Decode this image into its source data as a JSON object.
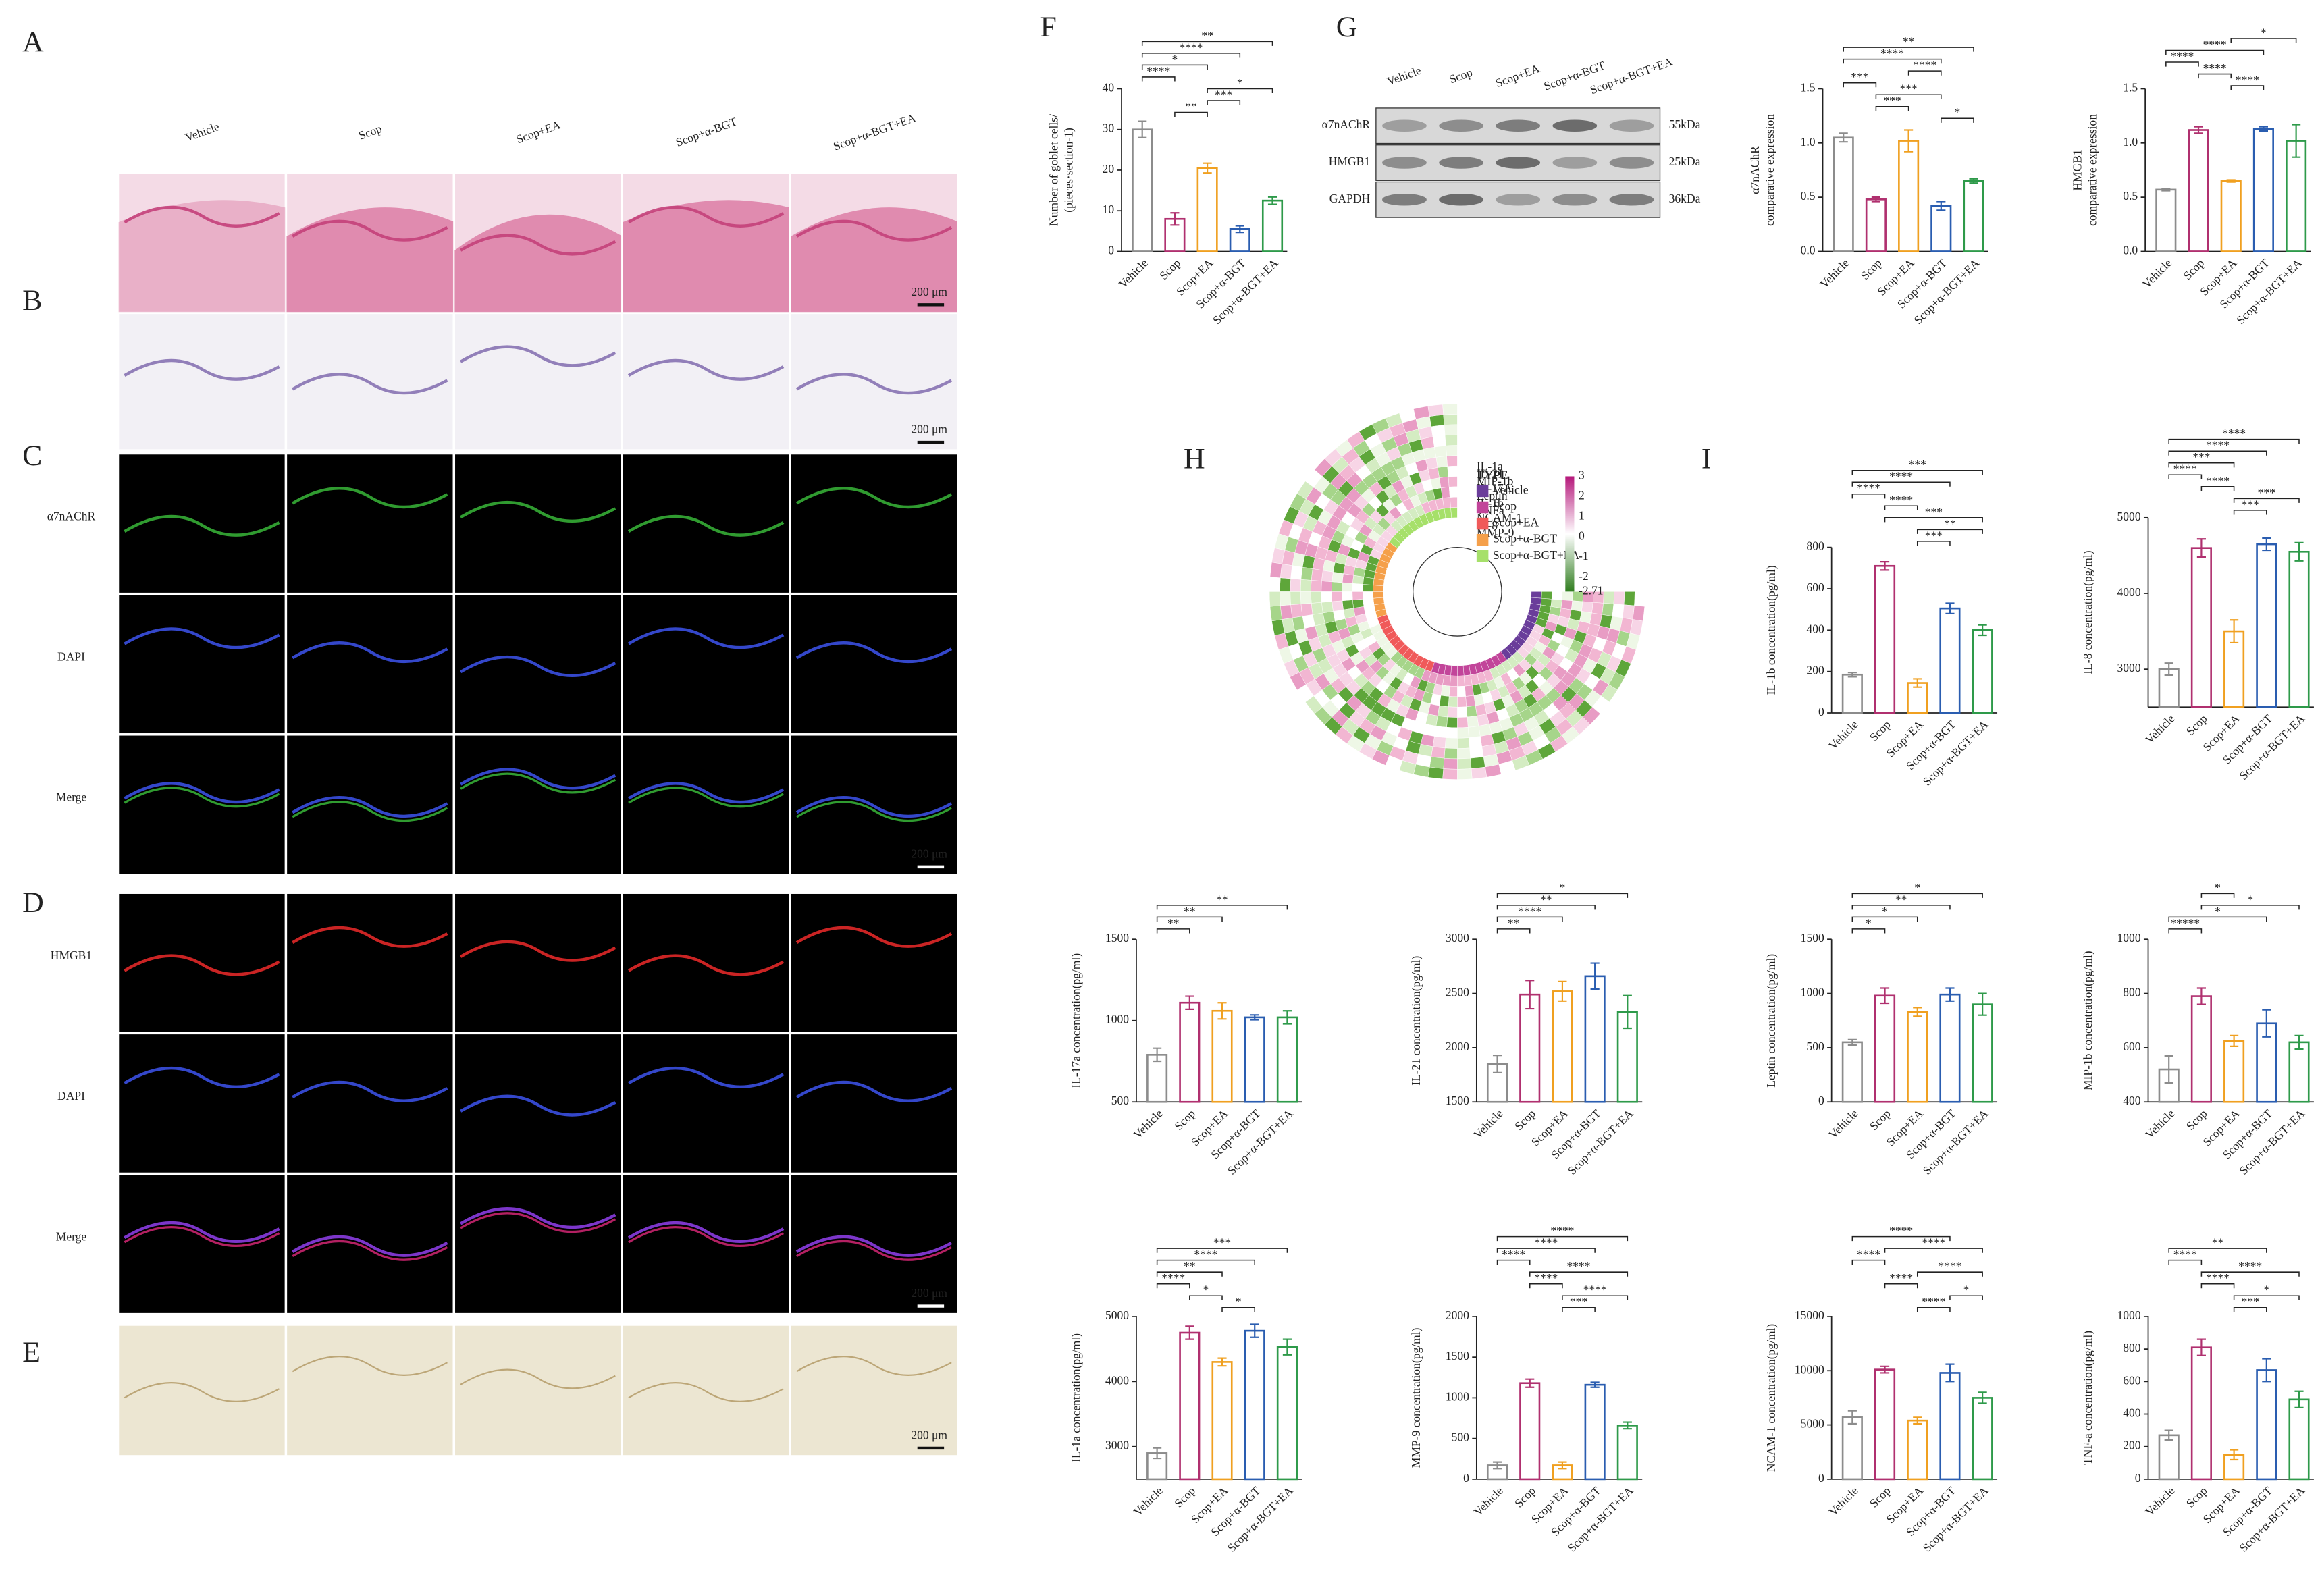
{
  "panel_labels": [
    "A",
    "B",
    "C",
    "D",
    "E",
    "F",
    "G",
    "H",
    "I"
  ],
  "micrographs": {
    "columns": [
      "Vehicle",
      "Scop",
      "Scop+EA",
      "Scop+α-BGT",
      "Scop+α-BGT+EA"
    ],
    "channels_C": [
      "α7nAChR",
      "DAPI",
      "Merge"
    ],
    "channels_D": [
      "HMGB1",
      "DAPI",
      "Merge"
    ],
    "scale_bar": "200 μm"
  },
  "blot": {
    "lanes": [
      "Vehicle",
      "Scop",
      "Scop+EA",
      "Scop+α-BGT",
      "Scop+α-BGT+EA"
    ],
    "rows": [
      {
        "name": "α7nAChR",
        "size": "55kDa"
      },
      {
        "name": "HMGB1",
        "size": "25kDa"
      },
      {
        "name": "GAPDH",
        "size": "36kDa"
      }
    ]
  },
  "heatmap": {
    "legend_title": "TYPE",
    "groups": [
      {
        "name": "Vehicle",
        "color": "#6a3d9a"
      },
      {
        "name": "Scop",
        "color": "#c2459a"
      },
      {
        "name": "Scop+EA",
        "color": "#f05a5a"
      },
      {
        "name": "Scop+α-BGT",
        "color": "#f5a04a"
      },
      {
        "name": "Scop+α-BGT+EA",
        "color": "#a6e06a"
      }
    ],
    "variables": [
      "IL-1a",
      "IL-21",
      "MIP-1b",
      "IL-17A",
      "Leptin",
      "IL-1b",
      "TNFa",
      "NCAM-1",
      "IL-8",
      "MMP-9"
    ],
    "colorbar_ticks": [
      3,
      2,
      1,
      0,
      -1,
      -2,
      -2.71
    ]
  },
  "chart_data": [
    {
      "type": "bar",
      "ylabel": [
        "Number of goblet cells/",
        "(pieces·section-1)"
      ],
      "categories": [
        "Vehicle",
        "Scop",
        "Scop+EA",
        "Scop+α-BGT",
        "Scop+α-BGT+EA"
      ],
      "colors": [
        "#8c8c8c",
        "#b0306f",
        "#f0a020",
        "#2a5db0",
        "#2e9a4a"
      ],
      "values": [
        30,
        8,
        20.5,
        5.5,
        12.5
      ],
      "errors": [
        2,
        1.5,
        1.2,
        0.8,
        0.9
      ],
      "ylim": [
        0,
        40
      ],
      "yticks": [
        0,
        10,
        20,
        30,
        40
      ],
      "significance": [
        {
          "pair": [
            0,
            4
          ],
          "label": "**"
        },
        {
          "pair": [
            0,
            3
          ],
          "label": "****"
        },
        {
          "pair": [
            0,
            2
          ],
          "label": "*"
        },
        {
          "pair": [
            0,
            1
          ],
          "label": "****"
        },
        {
          "pair": [
            2,
            4
          ],
          "label": "*"
        },
        {
          "pair": [
            2,
            3
          ],
          "label": "***"
        },
        {
          "pair": [
            1,
            2
          ],
          "label": "**"
        }
      ]
    },
    {
      "type": "bar",
      "ylabel": [
        "α7nAChR",
        "comparative expression"
      ],
      "categories": [
        "Vehicle",
        "Scop",
        "Scop+EA",
        "Scop+α-BGT",
        "Scop+α-BGT+EA"
      ],
      "colors": [
        "#8c8c8c",
        "#b0306f",
        "#f0a020",
        "#2a5db0",
        "#2e9a4a"
      ],
      "values": [
        1.05,
        0.48,
        1.02,
        0.42,
        0.65
      ],
      "errors": [
        0.04,
        0.02,
        0.1,
        0.04,
        0.02
      ],
      "ylim": [
        0,
        1.5
      ],
      "yticks": [
        {
          "value": 0,
          "label": "0.0"
        },
        {
          "value": 0.5,
          "label": "0.5"
        },
        {
          "value": 1,
          "label": "1.0"
        },
        {
          "value": 1.5,
          "label": "1.5"
        }
      ],
      "significance": [
        {
          "pair": [
            0,
            4
          ],
          "label": "**"
        },
        {
          "pair": [
            0,
            3
          ],
          "label": "****"
        },
        {
          "pair": [
            2,
            3
          ],
          "label": "****"
        },
        {
          "pair": [
            0,
            1
          ],
          "label": "***"
        },
        {
          "pair": [
            1,
            3
          ],
          "label": "***"
        },
        {
          "pair": [
            1,
            2
          ],
          "label": "***"
        },
        {
          "pair": [
            3,
            4
          ],
          "label": "*"
        }
      ]
    },
    {
      "type": "bar",
      "ylabel": [
        "HMGB1",
        "comparative expression"
      ],
      "categories": [
        "Vehicle",
        "Scop",
        "Scop+EA",
        "Scop+α-BGT",
        "Scop+α-BGT+EA"
      ],
      "colors": [
        "#8c8c8c",
        "#b0306f",
        "#f0a020",
        "#2a5db0",
        "#2e9a4a"
      ],
      "values": [
        0.57,
        1.12,
        0.65,
        1.13,
        1.02
      ],
      "errors": [
        0.01,
        0.03,
        0.01,
        0.02,
        0.15
      ],
      "ylim": [
        0,
        1.5
      ],
      "yticks": [
        {
          "value": 0,
          "label": "0.0"
        },
        {
          "value": 0.5,
          "label": "0.5"
        },
        {
          "value": 1,
          "label": "1.0"
        },
        {
          "value": 1.5,
          "label": "1.5"
        }
      ],
      "significance": [
        {
          "pair": [
            2,
            4
          ],
          "label": "*"
        },
        {
          "pair": [
            0,
            3
          ],
          "label": "****"
        },
        {
          "pair": [
            0,
            1
          ],
          "label": "****"
        },
        {
          "pair": [
            1,
            2
          ],
          "label": "****"
        },
        {
          "pair": [
            2,
            3
          ],
          "label": "****"
        }
      ]
    },
    {
      "type": "bar",
      "ylabel": [
        "IL-1b concentration(pg/ml)"
      ],
      "categories": [
        "Vehicle",
        "Scop",
        "Scop+EA",
        "Scop+α-BGT",
        "Scop+α-BGT+EA"
      ],
      "colors": [
        "#8c8c8c",
        "#b0306f",
        "#f0a020",
        "#2a5db0",
        "#2e9a4a"
      ],
      "values": [
        185,
        710,
        145,
        505,
        400
      ],
      "errors": [
        10,
        20,
        20,
        25,
        25
      ],
      "ylim": [
        0,
        800
      ],
      "yticks": [
        0,
        200,
        400,
        600,
        800
      ],
      "significance": [
        {
          "pair": [
            0,
            4
          ],
          "label": "***"
        },
        {
          "pair": [
            0,
            3
          ],
          "label": "****"
        },
        {
          "pair": [
            0,
            1
          ],
          "label": "****"
        },
        {
          "pair": [
            1,
            2
          ],
          "label": "****"
        },
        {
          "pair": [
            1,
            4
          ],
          "label": "***"
        },
        {
          "pair": [
            2,
            4
          ],
          "label": "**"
        },
        {
          "pair": [
            2,
            3
          ],
          "label": "***"
        }
      ]
    },
    {
      "type": "bar",
      "ylabel": [
        "IL-8 concentration(pg/ml)"
      ],
      "categories": [
        "Vehicle",
        "Scop",
        "Scop+EA",
        "Scop+α-BGT",
        "Scop+α-BGT+EA"
      ],
      "colors": [
        "#8c8c8c",
        "#b0306f",
        "#f0a020",
        "#2a5db0",
        "#2e9a4a"
      ],
      "values": [
        3000,
        4600,
        3500,
        4650,
        4550
      ],
      "errors": [
        80,
        120,
        150,
        80,
        120
      ],
      "ylim": [
        2500,
        5000
      ],
      "yticks": [
        3000,
        4000,
        5000
      ],
      "significance": [
        {
          "pair": [
            0,
            4
          ],
          "label": "****"
        },
        {
          "pair": [
            0,
            3
          ],
          "label": "****"
        },
        {
          "pair": [
            0,
            2
          ],
          "label": "***"
        },
        {
          "pair": [
            0,
            1
          ],
          "label": "****"
        },
        {
          "pair": [
            1,
            2
          ],
          "label": "****"
        },
        {
          "pair": [
            2,
            4
          ],
          "label": "***"
        },
        {
          "pair": [
            2,
            3
          ],
          "label": "***"
        }
      ]
    },
    {
      "type": "bar",
      "ylabel": [
        "IL-17a concentration(pg/ml)"
      ],
      "categories": [
        "Vehicle",
        "Scop",
        "Scop+EA",
        "Scop+α-BGT",
        "Scop+α-BGT+EA"
      ],
      "colors": [
        "#8c8c8c",
        "#b0306f",
        "#f0a020",
        "#2a5db0",
        "#2e9a4a"
      ],
      "values": [
        790,
        1110,
        1060,
        1020,
        1020
      ],
      "errors": [
        40,
        40,
        50,
        15,
        40
      ],
      "ylim": [
        500,
        1500
      ],
      "yticks": [
        500,
        1000,
        1500
      ],
      "significance": [
        {
          "pair": [
            0,
            4
          ],
          "label": "**"
        },
        {
          "pair": [
            0,
            2
          ],
          "label": "**"
        },
        {
          "pair": [
            0,
            1
          ],
          "label": "**"
        }
      ]
    },
    {
      "type": "bar",
      "ylabel": [
        "IL-21 concentration(pg/ml)"
      ],
      "categories": [
        "Vehicle",
        "Scop",
        "Scop+EA",
        "Scop+α-BGT",
        "Scop+α-BGT+EA"
      ],
      "colors": [
        "#8c8c8c",
        "#b0306f",
        "#f0a020",
        "#2a5db0",
        "#2e9a4a"
      ],
      "values": [
        1850,
        2490,
        2520,
        2660,
        2330
      ],
      "errors": [
        80,
        130,
        90,
        120,
        150
      ],
      "ylim": [
        1500,
        3000
      ],
      "yticks": [
        1500,
        2000,
        2500,
        3000
      ],
      "significance": [
        {
          "pair": [
            0,
            4
          ],
          "label": "*"
        },
        {
          "pair": [
            0,
            3
          ],
          "label": "**"
        },
        {
          "pair": [
            0,
            2
          ],
          "label": "****"
        },
        {
          "pair": [
            0,
            1
          ],
          "label": "**"
        }
      ]
    },
    {
      "type": "bar",
      "ylabel": [
        "Leptin concentration(pg/ml)"
      ],
      "categories": [
        "Vehicle",
        "Scop",
        "Scop+EA",
        "Scop+α-BGT",
        "Scop+α-BGT+EA"
      ],
      "colors": [
        "#8c8c8c",
        "#b0306f",
        "#f0a020",
        "#2a5db0",
        "#2e9a4a"
      ],
      "values": [
        550,
        980,
        830,
        990,
        900
      ],
      "errors": [
        25,
        70,
        40,
        60,
        100
      ],
      "ylim": [
        0,
        1500
      ],
      "yticks": [
        0,
        500,
        1000,
        1500
      ],
      "significance": [
        {
          "pair": [
            0,
            4
          ],
          "label": "*"
        },
        {
          "pair": [
            0,
            3
          ],
          "label": "**"
        },
        {
          "pair": [
            0,
            2
          ],
          "label": "*"
        },
        {
          "pair": [
            0,
            1
          ],
          "label": "*"
        }
      ]
    },
    {
      "type": "bar",
      "ylabel": [
        "MIP-1b concentration(pg/ml)"
      ],
      "categories": [
        "Vehicle",
        "Scop",
        "Scop+EA",
        "Scop+α-BGT",
        "Scop+α-BGT+EA"
      ],
      "colors": [
        "#8c8c8c",
        "#b0306f",
        "#f0a020",
        "#2a5db0",
        "#2e9a4a"
      ],
      "values": [
        520,
        790,
        625,
        690,
        620
      ],
      "errors": [
        50,
        30,
        20,
        50,
        25
      ],
      "ylim": [
        400,
        1000
      ],
      "yticks": [
        400,
        600,
        800,
        1000
      ],
      "significance": [
        {
          "pair": [
            1,
            2
          ],
          "label": "*"
        },
        {
          "pair": [
            1,
            4
          ],
          "label": "*"
        },
        {
          "pair": [
            0,
            3
          ],
          "label": "*"
        },
        {
          "pair": [
            0,
            1
          ],
          "label": "*****"
        }
      ]
    },
    {
      "type": "bar",
      "ylabel": [
        "IL-1a concentration(pg/ml)"
      ],
      "categories": [
        "Vehicle",
        "Scop",
        "Scop+EA",
        "Scop+α-BGT",
        "Scop+α-BGT+EA"
      ],
      "colors": [
        "#8c8c8c",
        "#b0306f",
        "#f0a020",
        "#2a5db0",
        "#2e9a4a"
      ],
      "values": [
        2900,
        4750,
        4300,
        4780,
        4530
      ],
      "errors": [
        80,
        100,
        60,
        100,
        120
      ],
      "ylim": [
        2500,
        5000
      ],
      "yticks": [
        3000,
        4000,
        5000
      ],
      "significance": [
        {
          "pair": [
            0,
            4
          ],
          "label": "***"
        },
        {
          "pair": [
            0,
            3
          ],
          "label": "****"
        },
        {
          "pair": [
            0,
            2
          ],
          "label": "**"
        },
        {
          "pair": [
            0,
            1
          ],
          "label": "****"
        },
        {
          "pair": [
            1,
            2
          ],
          "label": "*"
        },
        {
          "pair": [
            2,
            3
          ],
          "label": "*"
        }
      ]
    },
    {
      "type": "bar",
      "ylabel": [
        "MMP-9 concentration(pg/ml)"
      ],
      "categories": [
        "Vehicle",
        "Scop",
        "Scop+EA",
        "Scop+α-BGT",
        "Scop+α-BGT+EA"
      ],
      "colors": [
        "#8c8c8c",
        "#b0306f",
        "#f0a020",
        "#2a5db0",
        "#2e9a4a"
      ],
      "values": [
        170,
        1180,
        170,
        1160,
        660
      ],
      "errors": [
        40,
        50,
        40,
        30,
        40
      ],
      "ylim": [
        0,
        2000
      ],
      "yticks": [
        0,
        500,
        1000,
        1500,
        2000
      ],
      "significance": [
        {
          "pair": [
            0,
            4
          ],
          "label": "****"
        },
        {
          "pair": [
            0,
            3
          ],
          "label": "****"
        },
        {
          "pair": [
            0,
            1
          ],
          "label": "****"
        },
        {
          "pair": [
            1,
            4
          ],
          "label": "****"
        },
        {
          "pair": [
            1,
            2
          ],
          "label": "****"
        },
        {
          "pair": [
            2,
            4
          ],
          "label": "****"
        },
        {
          "pair": [
            2,
            3
          ],
          "label": "***"
        }
      ]
    },
    {
      "type": "bar",
      "ylabel": [
        "NCAM-1 concentration(pg/ml)"
      ],
      "categories": [
        "Vehicle",
        "Scop",
        "Scop+EA",
        "Scop+α-BGT",
        "Scop+α-BGT+EA"
      ],
      "colors": [
        "#8c8c8c",
        "#b0306f",
        "#f0a020",
        "#2a5db0",
        "#2e9a4a"
      ],
      "values": [
        5700,
        10100,
        5400,
        9800,
        7500
      ],
      "errors": [
        600,
        300,
        300,
        800,
        500
      ],
      "ylim": [
        0,
        15000
      ],
      "yticks": [
        0,
        5000,
        10000,
        15000
      ],
      "significance": [
        {
          "pair": [
            0,
            3
          ],
          "label": "****"
        },
        {
          "pair": [
            1,
            4
          ],
          "label": "****"
        },
        {
          "pair": [
            0,
            1
          ],
          "label": "****"
        },
        {
          "pair": [
            2,
            4
          ],
          "label": "****"
        },
        {
          "pair": [
            1,
            2
          ],
          "label": "****"
        },
        {
          "pair": [
            3,
            4
          ],
          "label": "*"
        },
        {
          "pair": [
            2,
            3
          ],
          "label": "****"
        }
      ]
    },
    {
      "type": "bar",
      "ylabel": [
        "TNF-a concentration(pg/ml)"
      ],
      "categories": [
        "Vehicle",
        "Scop",
        "Scop+EA",
        "Scop+α-BGT",
        "Scop+α-BGT+EA"
      ],
      "colors": [
        "#8c8c8c",
        "#b0306f",
        "#f0a020",
        "#2a5db0",
        "#2e9a4a"
      ],
      "values": [
        270,
        810,
        150,
        670,
        490
      ],
      "errors": [
        30,
        50,
        30,
        70,
        50
      ],
      "ylim": [
        0,
        1000
      ],
      "yticks": [
        0,
        200,
        400,
        600,
        800,
        1000
      ],
      "significance": [
        {
          "pair": [
            0,
            3
          ],
          "label": "**"
        },
        {
          "pair": [
            0,
            1
          ],
          "label": "****"
        },
        {
          "pair": [
            1,
            4
          ],
          "label": "****"
        },
        {
          "pair": [
            1,
            2
          ],
          "label": "****"
        },
        {
          "pair": [
            2,
            4
          ],
          "label": "*"
        },
        {
          "pair": [
            2,
            3
          ],
          "label": "***"
        }
      ]
    }
  ]
}
